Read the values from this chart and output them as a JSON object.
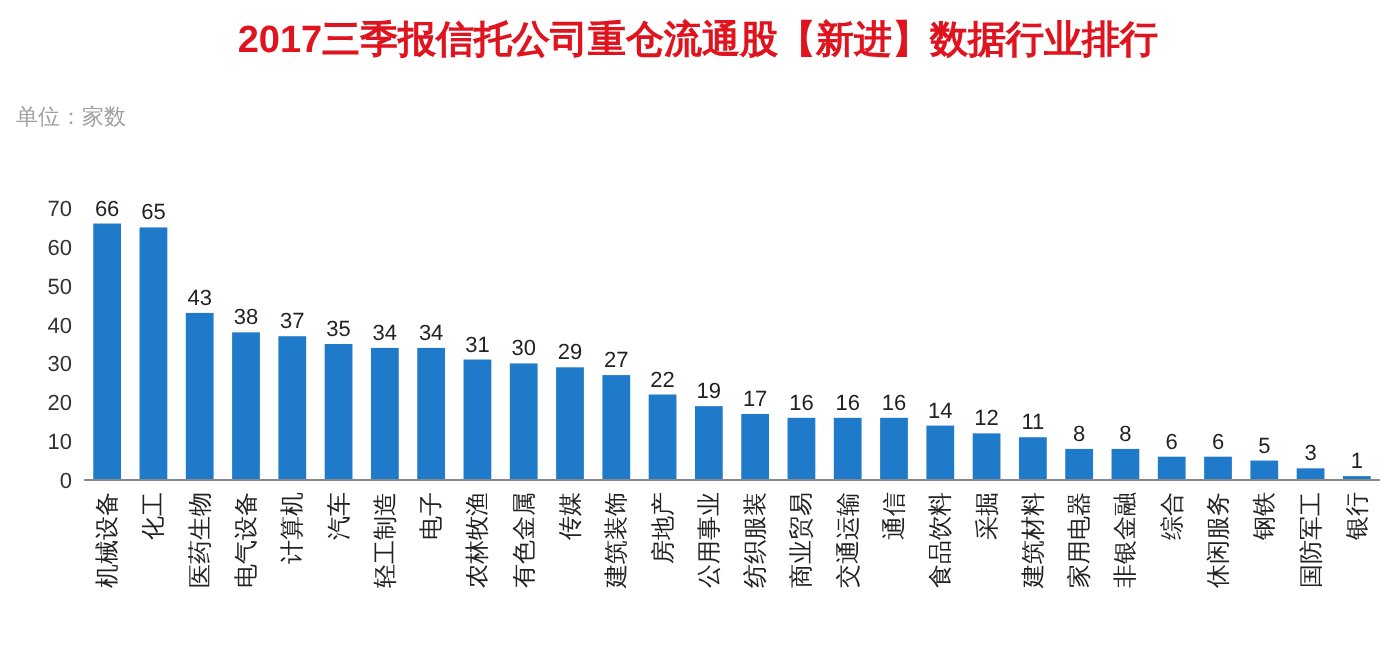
{
  "chart_data": {
    "type": "bar",
    "title": "2017三季报信托公司重仓流通股【新进】数据行业排行",
    "subtitle": "单位：家数",
    "categories": [
      "机械设备",
      "化工",
      "医药生物",
      "电气设备",
      "计算机",
      "汽车",
      "轻工制造",
      "电子",
      "农林牧渔",
      "有色金属",
      "传媒",
      "建筑装饰",
      "房地产",
      "公用事业",
      "纺织服装",
      "商业贸易",
      "交通运输",
      "通信",
      "食品饮料",
      "采掘",
      "建筑材料",
      "家用电器",
      "非银金融",
      "综合",
      "休闲服务",
      "钢铁",
      "国防军工",
      "银行"
    ],
    "values": [
      66,
      65,
      43,
      38,
      37,
      35,
      34,
      34,
      31,
      30,
      29,
      27,
      22,
      19,
      17,
      16,
      16,
      16,
      14,
      12,
      11,
      8,
      8,
      6,
      6,
      5,
      3,
      1
    ],
    "color": "#1f7bc9",
    "ylim": [
      0,
      70
    ],
    "yticks": [
      0,
      10,
      20,
      30,
      40,
      50,
      60,
      70
    ],
    "data_labels": true
  }
}
